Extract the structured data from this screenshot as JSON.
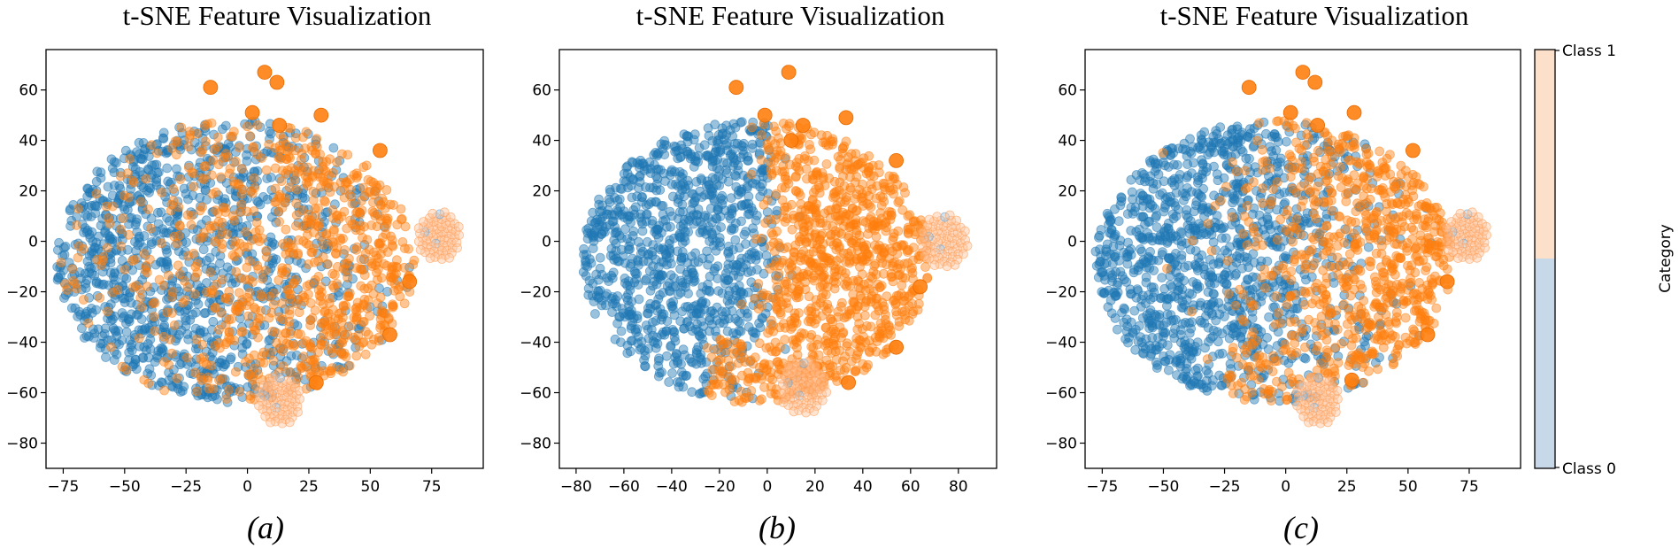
{
  "chart_data": [
    {
      "type": "scatter",
      "title": "t-SNE Feature Visualization",
      "panel_label": "(a)",
      "xlim": [
        -82,
        96
      ],
      "ylim": [
        -90,
        76
      ],
      "xticks": [
        -75,
        -50,
        -25,
        0,
        25,
        50,
        75
      ],
      "xtick_labels": [
        "−75",
        "−50",
        "−25",
        "0",
        "25",
        "50",
        "75"
      ],
      "yticks": [
        -80,
        -60,
        -40,
        -20,
        0,
        20,
        40,
        60
      ],
      "ytick_labels": [
        "−80",
        "−60",
        "−40",
        "−20",
        "0",
        "20",
        "40",
        "60"
      ],
      "grid": false,
      "separation": "mixed",
      "split_x": 5,
      "series": [
        {
          "class": "Class 0",
          "color": "#1f77b4",
          "n_points": 1100,
          "centers": [
            [
              -50,
              30
            ],
            [
              -30,
              -15
            ],
            [
              -20,
              10
            ],
            [
              10,
              15
            ],
            [
              25,
              -20
            ],
            [
              -60,
              -5
            ]
          ]
        },
        {
          "class": "Class 1",
          "color": "#ff7f0e",
          "n_points": 900,
          "centers": [
            [
              20,
              10
            ],
            [
              35,
              -10
            ],
            [
              10,
              -25
            ],
            [
              45,
              20
            ]
          ]
        }
      ],
      "rings": [
        [
          78,
          2,
          9,
          68
        ],
        [
          13,
          -63,
          9,
          66
        ]
      ],
      "big_dots": [
        [
          -15,
          61
        ],
        [
          2,
          51
        ],
        [
          7,
          67
        ],
        [
          30,
          50
        ],
        [
          13,
          46
        ],
        [
          54,
          36
        ],
        [
          58,
          -37
        ],
        [
          66,
          -16
        ],
        [
          28,
          -56
        ],
        [
          12,
          63
        ]
      ]
    },
    {
      "type": "scatter",
      "title": "t-SNE Feature Visualization",
      "panel_label": "(b)",
      "xlim": [
        -87,
        96
      ],
      "ylim": [
        -90,
        76
      ],
      "xticks": [
        -80,
        -60,
        -40,
        -20,
        0,
        20,
        40,
        60,
        80
      ],
      "xtick_labels": [
        "−80",
        "−60",
        "−40",
        "−20",
        "0",
        "20",
        "40",
        "60",
        "80"
      ],
      "yticks": [
        -80,
        -60,
        -40,
        -20,
        0,
        20,
        40,
        60
      ],
      "ytick_labels": [
        "−80",
        "−60",
        "−40",
        "−20",
        "0",
        "20",
        "40",
        "60"
      ],
      "grid": false,
      "separation": "clean",
      "split_x": 0,
      "series": [
        {
          "class": "Class 0",
          "color": "#1f77b4",
          "n_points": 1100,
          "centers": [
            [
              -45,
              30
            ],
            [
              -40,
              -10
            ],
            [
              -25,
              10
            ],
            [
              -60,
              -10
            ],
            [
              -35,
              -45
            ]
          ]
        },
        {
          "class": "Class 1",
          "color": "#ff7f0e",
          "n_points": 1000,
          "centers": [
            [
              25,
              5
            ],
            [
              35,
              -15
            ],
            [
              20,
              20
            ],
            [
              45,
              0
            ],
            [
              -15,
              -45
            ]
          ]
        }
      ],
      "rings": [
        [
          74,
          0,
          10,
          70
        ],
        [
          15,
          -58,
          10,
          70
        ]
      ],
      "big_dots": [
        [
          -13,
          61
        ],
        [
          -1,
          50
        ],
        [
          9,
          67
        ],
        [
          33,
          49
        ],
        [
          15,
          46
        ],
        [
          54,
          32
        ],
        [
          54,
          -42
        ],
        [
          64,
          -18
        ],
        [
          34,
          -56
        ],
        [
          10,
          40
        ]
      ]
    },
    {
      "type": "scatter",
      "title": "t-SNE Feature Visualization",
      "panel_label": "(c)",
      "xlim": [
        -82,
        96
      ],
      "ylim": [
        -90,
        76
      ],
      "xticks": [
        -75,
        -50,
        -25,
        0,
        25,
        50,
        75
      ],
      "xtick_labels": [
        "−75",
        "−50",
        "−25",
        "0",
        "25",
        "50",
        "75"
      ],
      "yticks": [
        -80,
        -60,
        -40,
        -20,
        0,
        20,
        40,
        60
      ],
      "ytick_labels": [
        "−80",
        "−60",
        "−40",
        "−20",
        "0",
        "20",
        "40",
        "60"
      ],
      "grid": false,
      "separation": "partial",
      "split_x": 10,
      "series": [
        {
          "class": "Class 0",
          "color": "#1f77b4",
          "n_points": 1100,
          "centers": [
            [
              -50,
              30
            ],
            [
              -35,
              -10
            ],
            [
              -20,
              10
            ],
            [
              -60,
              -5
            ],
            [
              -25,
              -45
            ]
          ]
        },
        {
          "class": "Class 1",
          "color": "#ff7f0e",
          "n_points": 950,
          "centers": [
            [
              30,
              5
            ],
            [
              40,
              -15
            ],
            [
              20,
              20
            ],
            [
              50,
              10
            ],
            [
              -20,
              -45
            ]
          ]
        }
      ],
      "rings": [
        [
          74,
          2,
          9,
          68
        ],
        [
          13,
          -63,
          9,
          66
        ]
      ],
      "big_dots": [
        [
          -15,
          61
        ],
        [
          2,
          51
        ],
        [
          7,
          67
        ],
        [
          28,
          51
        ],
        [
          13,
          46
        ],
        [
          52,
          36
        ],
        [
          58,
          -37
        ],
        [
          66,
          -16
        ],
        [
          27,
          -55
        ],
        [
          12,
          63
        ]
      ]
    }
  ],
  "colorbar": {
    "label": "Category",
    "top_label": "Class 1",
    "bottom_label": "Class 0",
    "top_color": "#fde0c9",
    "bottom_color": "#c7d9e8"
  }
}
